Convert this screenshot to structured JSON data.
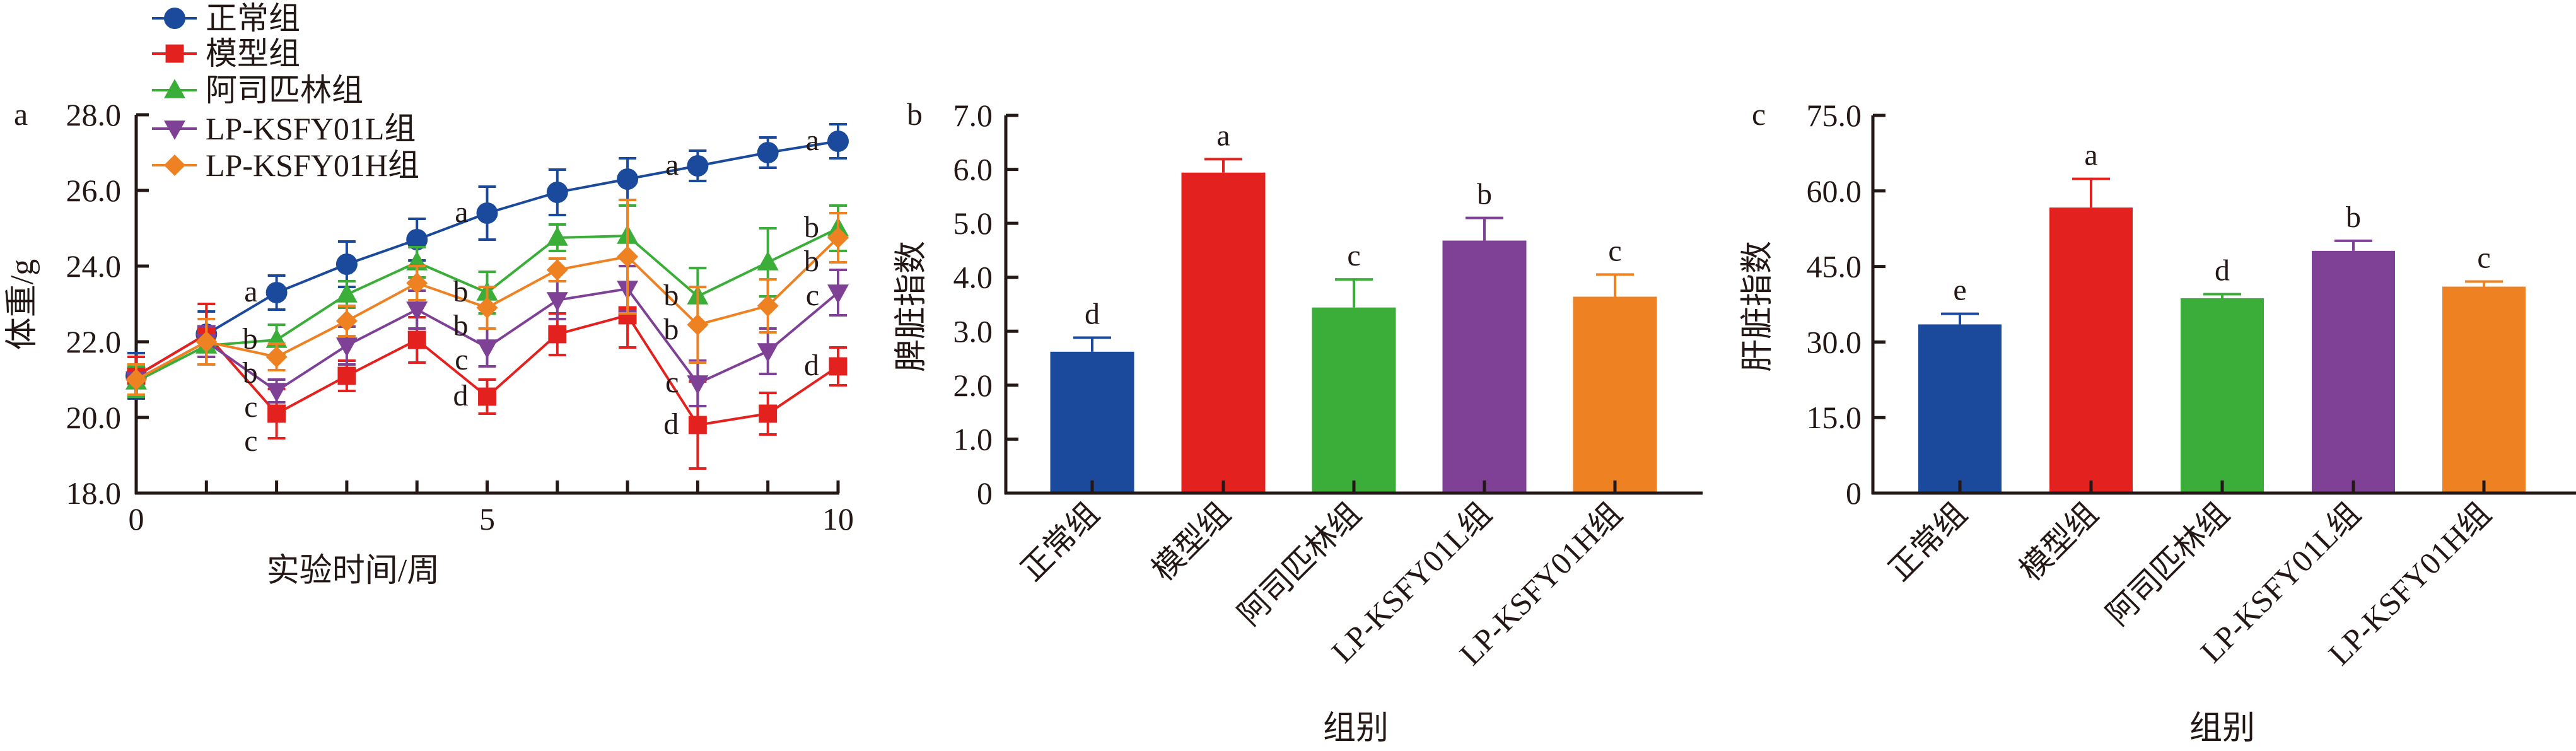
{
  "colors": {
    "normal": "#1B4A9C",
    "model": "#E3211F",
    "aspirin": "#3AAE38",
    "low": "#7E4196",
    "high": "#EE8121",
    "axis": "#231815"
  },
  "chart_data": [
    {
      "type": "line",
      "panel": "a",
      "xlabel": "实验时间/周",
      "ylabel": "体重/g",
      "xlim": [
        0,
        10
      ],
      "ylim": [
        18,
        28
      ],
      "xticks": [
        0,
        5,
        10
      ],
      "xtick_labels": [
        "0",
        "5",
        "10"
      ],
      "yticks": [
        18,
        20,
        22,
        24,
        26,
        28
      ],
      "ytick_labels": [
        "18.0",
        "20.0",
        "22.0",
        "24.0",
        "26.0",
        "28.0"
      ],
      "legend_position": "top-left",
      "x": [
        0,
        1,
        2,
        3,
        4,
        5,
        6,
        7,
        8,
        9,
        10
      ],
      "series": [
        {
          "name": "正常组",
          "marker": "circle",
          "color": "#1B4A9C",
          "values": [
            21.1,
            22.2,
            23.3,
            24.05,
            24.7,
            25.4,
            25.95,
            26.3,
            26.65,
            27.0,
            27.3
          ],
          "sd": [
            0.6,
            0.6,
            0.45,
            0.6,
            0.55,
            0.7,
            0.6,
            0.55,
            0.4,
            0.4,
            0.45
          ]
        },
        {
          "name": "模型组",
          "marker": "square",
          "color": "#E3211F",
          "values": [
            21.1,
            22.2,
            20.1,
            21.1,
            22.05,
            20.55,
            22.2,
            22.7,
            19.8,
            20.1,
            21.35
          ],
          "sd": [
            0.5,
            0.8,
            0.65,
            0.4,
            0.6,
            0.45,
            0.55,
            0.85,
            1.15,
            0.55,
            0.5
          ]
        },
        {
          "name": "阿司匹林组",
          "marker": "triangle",
          "color": "#3AAE38",
          "values": [
            20.95,
            21.9,
            22.05,
            23.25,
            24.1,
            23.3,
            24.75,
            24.8,
            23.2,
            24.1,
            25.0
          ],
          "sd": [
            0.4,
            0.5,
            0.4,
            0.35,
            0.4,
            0.55,
            0.35,
            0.8,
            0.75,
            0.9,
            0.6
          ]
        },
        {
          "name": "LP-KSFY01L组",
          "marker": "triangle-down",
          "color": "#7E4196",
          "values": [
            21.0,
            22.0,
            20.7,
            21.9,
            22.85,
            21.85,
            23.1,
            23.4,
            20.9,
            21.75,
            23.3
          ],
          "sd": [
            0.4,
            0.4,
            0.3,
            0.5,
            0.5,
            0.5,
            0.5,
            0.6,
            0.6,
            0.6,
            0.6
          ]
        },
        {
          "name": "LP-KSFY01H组",
          "marker": "diamond",
          "color": "#EE8121",
          "values": [
            21.0,
            22.0,
            21.6,
            22.55,
            23.55,
            22.9,
            23.9,
            24.25,
            22.45,
            22.95,
            24.75
          ],
          "sd": [
            0.4,
            0.6,
            0.35,
            0.4,
            0.45,
            0.55,
            0.3,
            1.5,
            1.0,
            0.7,
            0.65
          ]
        }
      ],
      "annotations": [
        {
          "x": 2,
          "series": 0,
          "text": "a"
        },
        {
          "x": 2,
          "series": 2,
          "text": "b"
        },
        {
          "x": 2,
          "series": 4,
          "text": "b"
        },
        {
          "x": 2,
          "series": 3,
          "text": "c"
        },
        {
          "x": 2,
          "series": 1,
          "text": "c"
        },
        {
          "x": 5,
          "series": 0,
          "text": "a"
        },
        {
          "x": 5,
          "series": 2,
          "text": "b"
        },
        {
          "x": 5,
          "series": 4,
          "text": "b"
        },
        {
          "x": 5,
          "series": 3,
          "text": "c"
        },
        {
          "x": 5,
          "series": 1,
          "text": "d"
        },
        {
          "x": 8,
          "series": 0,
          "text": "a"
        },
        {
          "x": 8,
          "series": 2,
          "text": "b"
        },
        {
          "x": 8,
          "series": 4,
          "text": "b"
        },
        {
          "x": 8,
          "series": 3,
          "text": "c"
        },
        {
          "x": 8,
          "series": 1,
          "text": "d"
        },
        {
          "x": 10,
          "series": 0,
          "text": "a"
        },
        {
          "x": 10,
          "series": 2,
          "text": "b"
        },
        {
          "x": 10,
          "series": 4,
          "text": "b"
        },
        {
          "x": 10,
          "series": 3,
          "text": "c"
        },
        {
          "x": 10,
          "series": 1,
          "text": "d"
        }
      ]
    },
    {
      "type": "bar",
      "panel": "b",
      "xlabel": "组别",
      "ylabel": "脾脏指数",
      "ylim": [
        0,
        7
      ],
      "yticks": [
        0,
        1,
        2,
        3,
        4,
        5,
        6,
        7
      ],
      "ytick_labels": [
        "0",
        "1.0",
        "2.0",
        "3.0",
        "4.0",
        "5.0",
        "6.0",
        "7.0"
      ],
      "categories": [
        "正常组",
        "模型组",
        "阿司匹林组",
        "LP-KSFY01L组",
        "LP-KSFY01H组"
      ],
      "values": [
        2.62,
        5.94,
        3.44,
        4.68,
        3.64
      ],
      "sd": [
        0.26,
        0.25,
        0.52,
        0.42,
        0.41
      ],
      "significance": [
        "d",
        "a",
        "c",
        "b",
        "c"
      ],
      "colors": [
        "#1B4A9C",
        "#E3211F",
        "#3AAE38",
        "#7E4196",
        "#EE8121"
      ]
    },
    {
      "type": "bar",
      "panel": "c",
      "xlabel": "组别",
      "ylabel": "肝脏指数",
      "ylim": [
        0,
        75
      ],
      "yticks": [
        0,
        15,
        30,
        45,
        60,
        75
      ],
      "ytick_labels": [
        "0",
        "15.0",
        "30.0",
        "45.0",
        "60.0",
        "75.0"
      ],
      "categories": [
        "正常组",
        "模型组",
        "阿司匹林组",
        "LP-KSFY01L组",
        "LP-KSFY01H组"
      ],
      "values": [
        33.5,
        56.7,
        38.7,
        48.1,
        41.0
      ],
      "sd": [
        2.1,
        5.7,
        0.8,
        2.0,
        1.0
      ],
      "significance": [
        "e",
        "a",
        "d",
        "b",
        "c"
      ],
      "colors": [
        "#1B4A9C",
        "#E3211F",
        "#3AAE38",
        "#7E4196",
        "#EE8121"
      ]
    }
  ]
}
